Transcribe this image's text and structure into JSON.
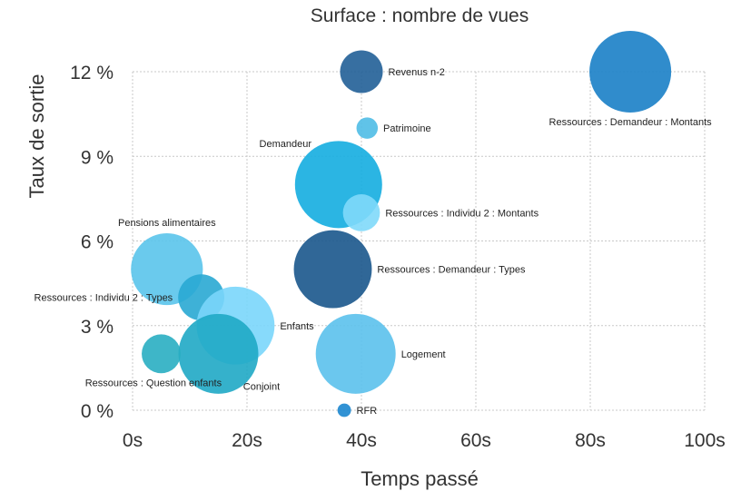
{
  "chart_data": {
    "type": "scatter",
    "title": "Surface : nombre de vues",
    "xlabel": "Temps passé",
    "ylabel": "Taux de sortie",
    "xlim": [
      0,
      100
    ],
    "ylim": [
      0,
      12
    ],
    "xticks": [
      "0s",
      "20s",
      "40s",
      "60s",
      "80s",
      "100s"
    ],
    "yticks": [
      "0 %",
      "3 %",
      "6 %",
      "9 %",
      "12 %"
    ],
    "grid": true,
    "points": [
      {
        "label": "Revenus n-2",
        "x": 40,
        "y": 12,
        "size": 6,
        "color": "#215f97",
        "label_pos": "right"
      },
      {
        "label": "Ressources : Demandeur : Montants",
        "x": 87,
        "y": 12,
        "size": 22,
        "color": "#1a80c6",
        "label_pos": "below"
      },
      {
        "label": "Patrimoine",
        "x": 41,
        "y": 10,
        "size": 1.5,
        "color": "#4fbde5",
        "label_pos": "right"
      },
      {
        "label": "Demandeur",
        "x": 36,
        "y": 8,
        "size": 25,
        "color": "#14ade0",
        "label_pos": "above-left"
      },
      {
        "label": "Ressources : Individu 2 : Montants",
        "x": 40,
        "y": 7,
        "size": 4.5,
        "color": "#7fd9f9",
        "label_pos": "right"
      },
      {
        "label": "Ressources : Demandeur : Types",
        "x": 35,
        "y": 5,
        "size": 20,
        "color": "#19578c",
        "label_pos": "right"
      },
      {
        "label": "Pensions alimentaires",
        "x": 6,
        "y": 5,
        "size": 17,
        "color": "#5ac4eb",
        "label_pos": "above"
      },
      {
        "label": "Ressources : Individu 2 : Types",
        "x": 12,
        "y": 4,
        "size": 7,
        "color": "#29a9d3",
        "label_pos": "left"
      },
      {
        "label": "Enfants",
        "x": 18,
        "y": 3,
        "size": 20,
        "color": "#7ad6fb",
        "label_pos": "right"
      },
      {
        "label": "Conjoint",
        "x": 15,
        "y": 2,
        "size": 21,
        "color": "#1fa9c5",
        "label_pos": "below-right"
      },
      {
        "label": "Ressources : Question enfants",
        "x": 5,
        "y": 2,
        "size": 5,
        "color": "#29aec2",
        "label_pos": "below-left"
      },
      {
        "label": "Logement",
        "x": 39,
        "y": 2,
        "size": 21,
        "color": "#5bc1ec",
        "label_pos": "right"
      },
      {
        "label": "RFR",
        "x": 37,
        "y": 0,
        "size": 0.6,
        "color": "#1b86cf",
        "label_pos": "right"
      }
    ]
  }
}
